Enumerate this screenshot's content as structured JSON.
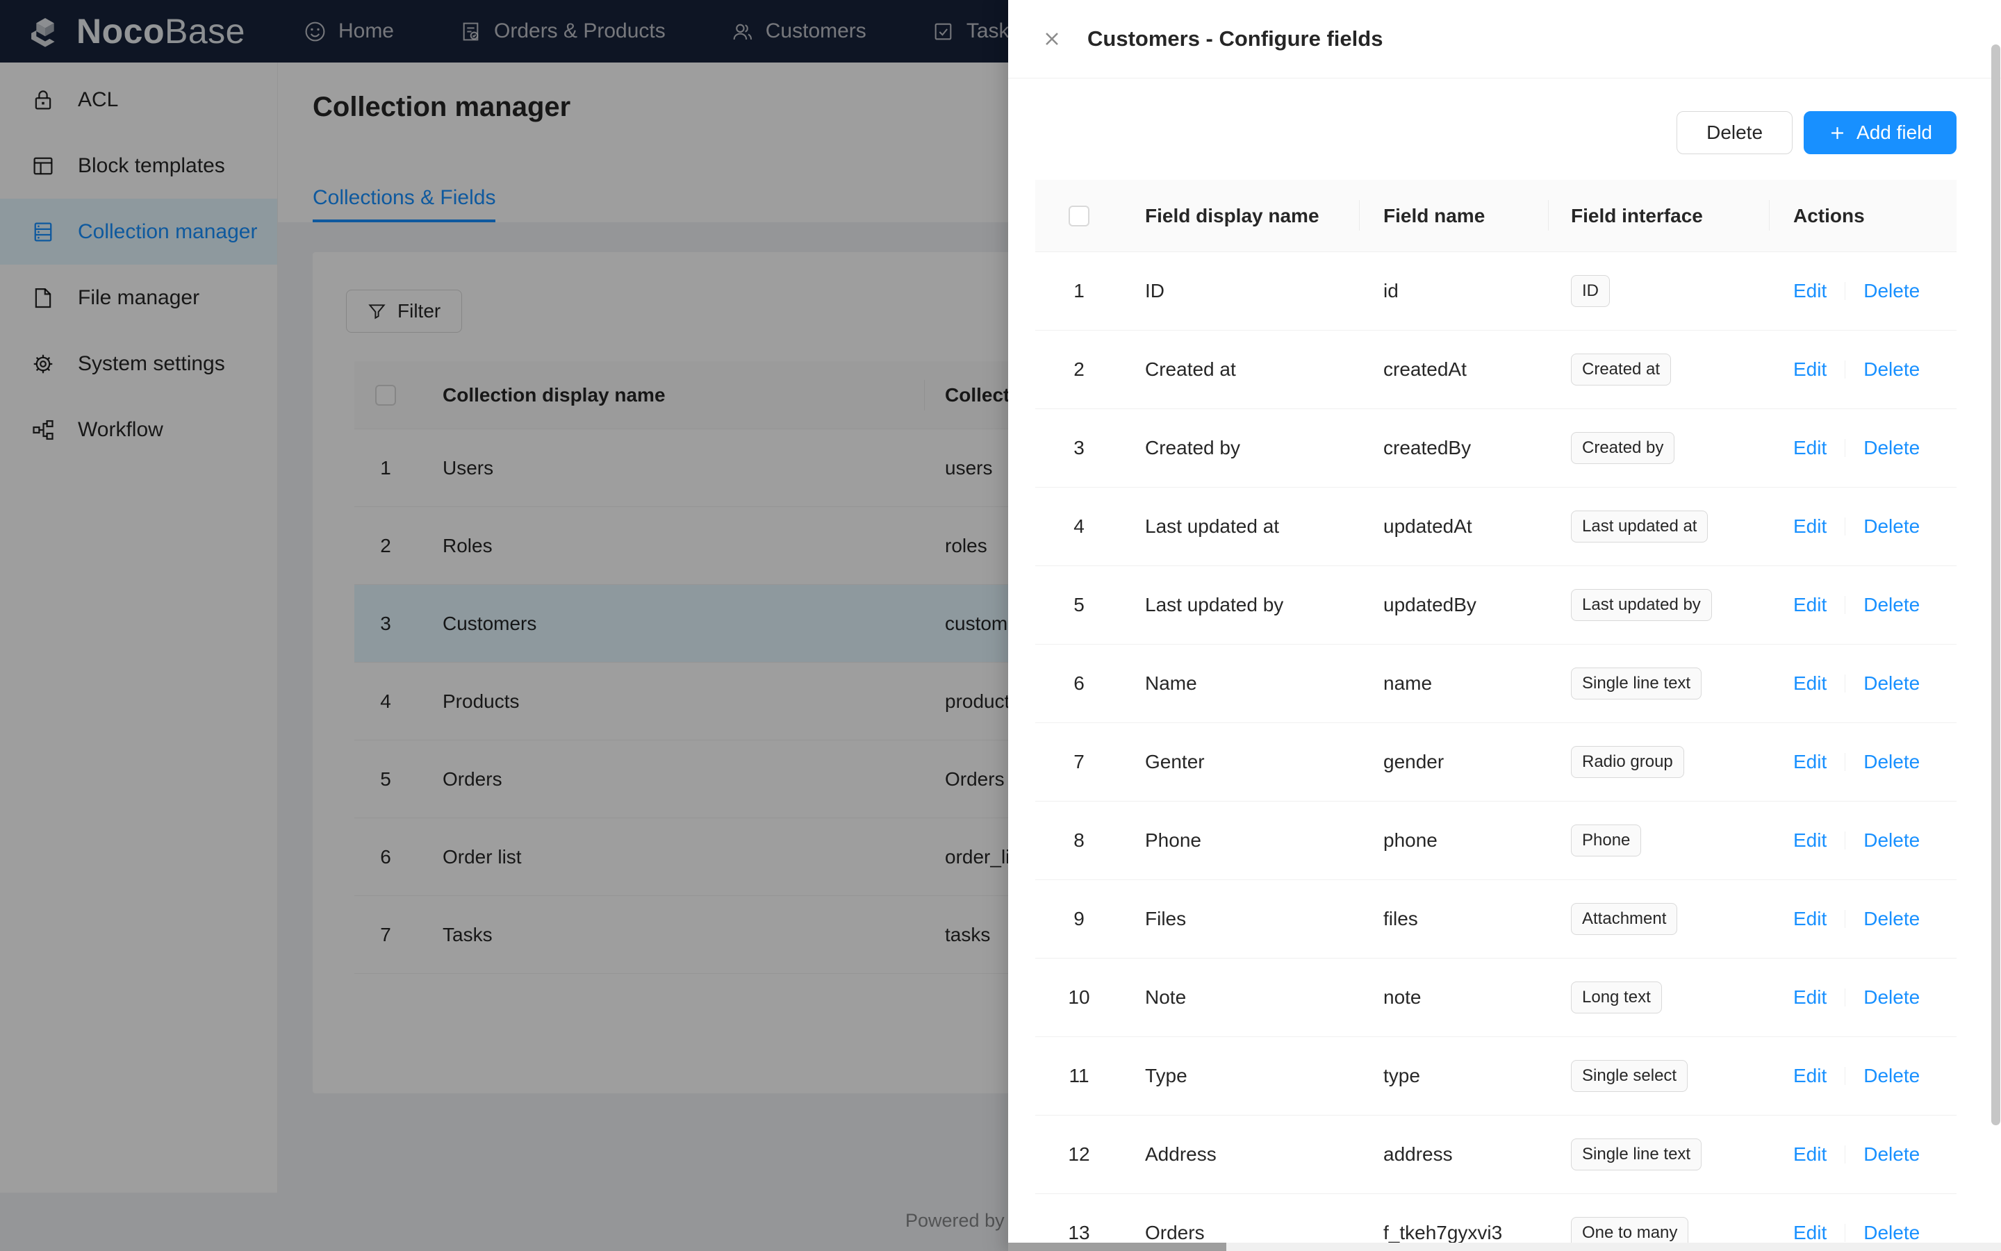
{
  "nav": {
    "brand_bold": "Noco",
    "brand_light": "Base",
    "items": [
      {
        "label": "Home",
        "icon": "smiley-icon"
      },
      {
        "label": "Orders & Products",
        "icon": "orders-doc-icon"
      },
      {
        "label": "Customers",
        "icon": "customers-icon"
      },
      {
        "label": "Tasks",
        "icon": "tasks-check-icon"
      }
    ]
  },
  "sidebar": {
    "items": [
      {
        "label": "ACL",
        "icon": "lock-icon",
        "selected": false
      },
      {
        "label": "Block templates",
        "icon": "layout-icon",
        "selected": false
      },
      {
        "label": "Collection manager",
        "icon": "collection-icon",
        "selected": true
      },
      {
        "label": "File manager",
        "icon": "file-icon",
        "selected": false
      },
      {
        "label": "System settings",
        "icon": "gear-icon",
        "selected": false
      },
      {
        "label": "Workflow",
        "icon": "workflow-icon",
        "selected": false
      }
    ]
  },
  "page": {
    "title": "Collection manager",
    "tab": "Collections & Fields",
    "filter_label": "Filter",
    "powered_by": "Powered by"
  },
  "collections_table": {
    "headers": {
      "display_name": "Collection display name",
      "name": "Collection name"
    },
    "rows": [
      {
        "n": "1",
        "display": "Users",
        "name": "users",
        "selected": false
      },
      {
        "n": "2",
        "display": "Roles",
        "name": "roles",
        "selected": false
      },
      {
        "n": "3",
        "display": "Customers",
        "name": "customers",
        "selected": true
      },
      {
        "n": "4",
        "display": "Products",
        "name": "products",
        "selected": false
      },
      {
        "n": "5",
        "display": "Orders",
        "name": "Orders",
        "selected": false
      },
      {
        "n": "6",
        "display": "Order list",
        "name": "order_list",
        "selected": false
      },
      {
        "n": "7",
        "display": "Tasks",
        "name": "tasks",
        "selected": false
      }
    ]
  },
  "drawer": {
    "title": "Customers - Configure fields",
    "delete_button": "Delete",
    "add_field_button": "Add field",
    "table": {
      "headers": {
        "display_name": "Field display name",
        "field_name": "Field name",
        "interface": "Field interface",
        "actions": "Actions"
      },
      "edit_label": "Edit",
      "delete_label": "Delete",
      "rows": [
        {
          "n": "1",
          "display": "ID",
          "name": "id",
          "interface": "ID"
        },
        {
          "n": "2",
          "display": "Created at",
          "name": "createdAt",
          "interface": "Created at"
        },
        {
          "n": "3",
          "display": "Created by",
          "name": "createdBy",
          "interface": "Created by"
        },
        {
          "n": "4",
          "display": "Last updated at",
          "name": "updatedAt",
          "interface": "Last updated at"
        },
        {
          "n": "5",
          "display": "Last updated by",
          "name": "updatedBy",
          "interface": "Last updated by"
        },
        {
          "n": "6",
          "display": "Name",
          "name": "name",
          "interface": "Single line text"
        },
        {
          "n": "7",
          "display": "Genter",
          "name": "gender",
          "interface": "Radio group"
        },
        {
          "n": "8",
          "display": "Phone",
          "name": "phone",
          "interface": "Phone"
        },
        {
          "n": "9",
          "display": "Files",
          "name": "files",
          "interface": "Attachment"
        },
        {
          "n": "10",
          "display": "Note",
          "name": "note",
          "interface": "Long text"
        },
        {
          "n": "11",
          "display": "Type",
          "name": "type",
          "interface": "Single select"
        },
        {
          "n": "12",
          "display": "Address",
          "name": "address",
          "interface": "Single line text"
        },
        {
          "n": "13",
          "display": "Orders",
          "name": "f_tkeh7gyxvi3",
          "interface": "One to many"
        }
      ]
    }
  },
  "colors": {
    "accent": "#1890ff",
    "header_bg": "#17233a",
    "selected_row_bg": "#e6f7ff"
  }
}
